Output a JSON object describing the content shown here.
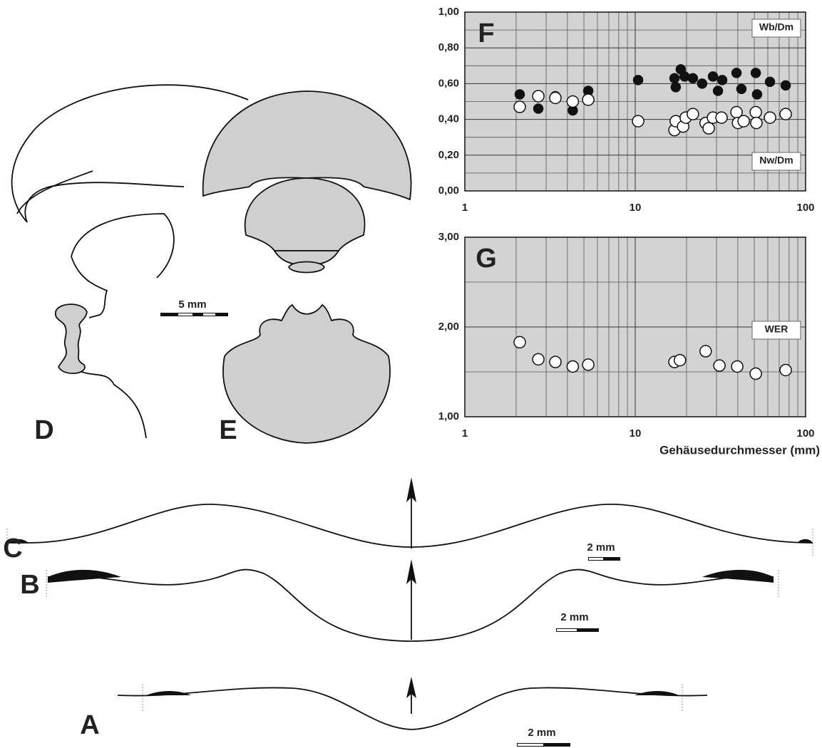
{
  "chart_data": [
    {
      "type": "scatter",
      "panel": "F",
      "log_x": true,
      "grid": true,
      "xlim": [
        1,
        100
      ],
      "xticks": [
        1,
        10,
        100
      ],
      "minor_xticks": [
        2,
        3,
        4,
        5,
        6,
        7,
        8,
        9,
        20,
        30,
        40,
        50,
        60,
        70,
        80,
        90
      ],
      "ylim": [
        0,
        1
      ],
      "yticks": [
        {
          "value": 0,
          "label": "0,00"
        },
        {
          "value": 0.2,
          "label": "0,20"
        },
        {
          "value": 0.4,
          "label": "0,40"
        },
        {
          "value": 0.6,
          "label": "0,60"
        },
        {
          "value": 0.8,
          "label": "0,80"
        },
        {
          "value": 1,
          "label": "1,00"
        }
      ],
      "minor_yticks": [
        0.1,
        0.3,
        0.5,
        0.7,
        0.9
      ],
      "series": [
        {
          "name": "Wb/Dm",
          "color": "#111111",
          "x": [
            2.1,
            2.7,
            3.4,
            4.3,
            5.3,
            10.4,
            17.0,
            17.3,
            18.5,
            19.5,
            21.8,
            24.7,
            28.6,
            30.6,
            32.4,
            39.3,
            42.0,
            51,
            51.9,
            61.8,
            76.4
          ],
          "values": [
            0.54,
            0.46,
            0.53,
            0.45,
            0.56,
            0.62,
            0.63,
            0.58,
            0.68,
            0.64,
            0.63,
            0.6,
            0.64,
            0.56,
            0.62,
            0.66,
            0.57,
            0.66,
            0.54,
            0.61,
            0.59
          ]
        },
        {
          "name": "Nw/Dm",
          "color": "#ffffff",
          "x": [
            2.1,
            2.7,
            3.4,
            4.3,
            5.3,
            10.4,
            17.0,
            17.3,
            19.1,
            19.8,
            21.8,
            25.9,
            27.0,
            28.6,
            32.1,
            39.3,
            40.1,
            43.3,
            51,
            51.4,
            61.8,
            76.4
          ],
          "values": [
            0.47,
            0.53,
            0.52,
            0.5,
            0.51,
            0.39,
            0.34,
            0.39,
            0.36,
            0.41,
            0.43,
            0.38,
            0.35,
            0.41,
            0.41,
            0.44,
            0.38,
            0.39,
            0.44,
            0.38,
            0.41,
            0.43
          ]
        }
      ]
    },
    {
      "type": "scatter",
      "panel": "G",
      "log_x": true,
      "grid": true,
      "xlim": [
        1,
        100
      ],
      "xticks": [
        1,
        10,
        100
      ],
      "minor_xticks": [
        2,
        3,
        4,
        5,
        6,
        7,
        8,
        9,
        20,
        30,
        40,
        50,
        60,
        70,
        80,
        90
      ],
      "xlabel": "Gehäusedurchmesser (mm)",
      "ylim": [
        1,
        3
      ],
      "yticks": [
        {
          "value": 1,
          "label": "1,00"
        },
        {
          "value": 2,
          "label": "2,00"
        },
        {
          "value": 3,
          "label": "3,00"
        }
      ],
      "minor_yticks": [
        1.5,
        2.5
      ],
      "series": [
        {
          "name": "WER",
          "color": "#ffffff",
          "x": [
            2.1,
            2.7,
            3.4,
            4.3,
            5.3,
            17.0,
            18.3,
            25.9,
            31.2,
            39.7,
            51,
            76.4
          ],
          "values": [
            1.83,
            1.64,
            1.61,
            1.56,
            1.58,
            1.61,
            1.63,
            1.73,
            1.57,
            1.56,
            1.48,
            1.52
          ]
        }
      ]
    }
  ],
  "panels": [
    "D",
    "E",
    "C",
    "B",
    "A"
  ],
  "scale_bars": [
    "5 mm",
    "2 mm",
    "2 mm",
    "2 mm"
  ]
}
